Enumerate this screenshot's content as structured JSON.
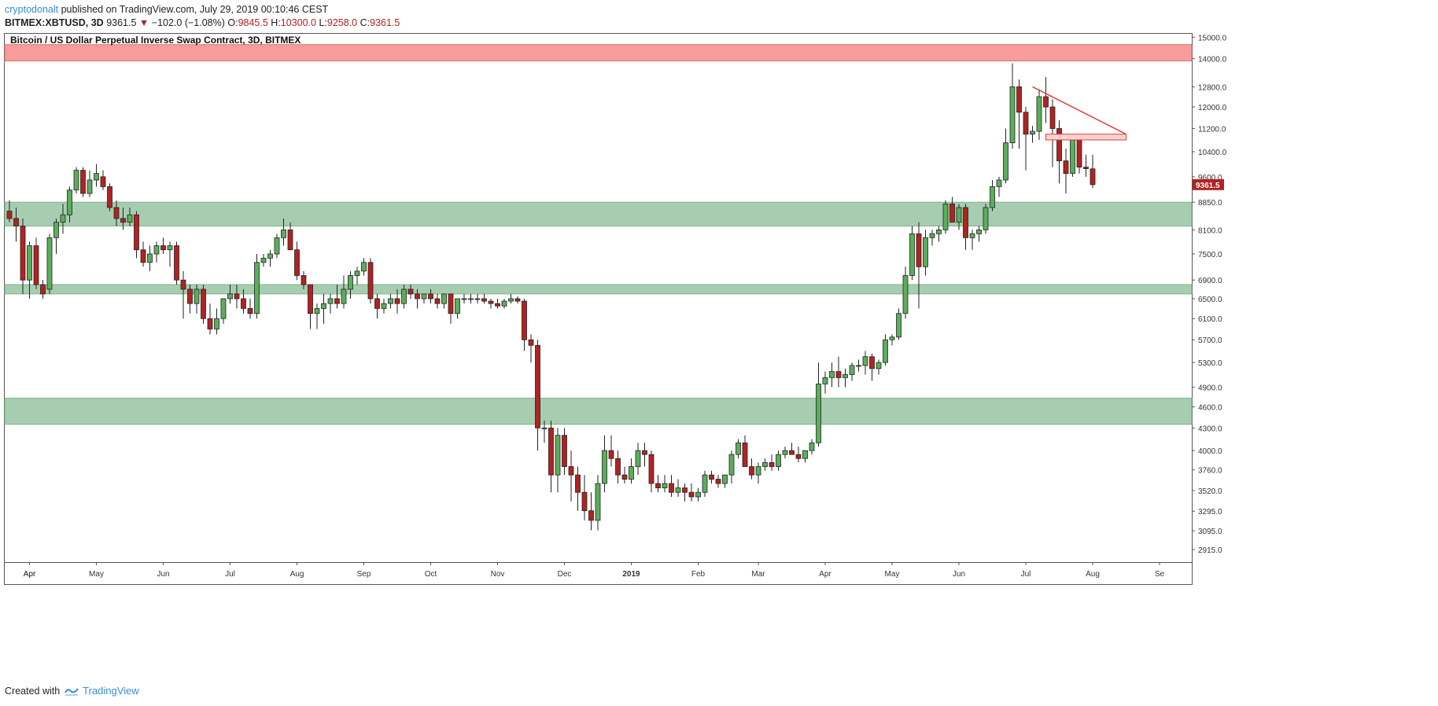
{
  "header": {
    "author": "cryptodonalt",
    "published_text": "published on TradingView.com, July 29, 2019 00:10:46 CEST",
    "symbol": "BITMEX:XBTUSD, 3D",
    "last": "9361.5",
    "change": "−102.0 (−1.08%)",
    "o_label": "O:",
    "o_value": "9845.5",
    "h_label": "H:",
    "h_value": "10300.0",
    "l_label": "L:",
    "l_value": "9258.0",
    "c_label": "C:",
    "c_value": "9361.5"
  },
  "footer": {
    "created_with": "Created with",
    "brand": "TradingView"
  },
  "colors": {
    "up": "#3d9a3d",
    "up_fill": "#5aaf5a",
    "down": "#b22222",
    "zone_green": "#a7cdb0",
    "zone_red": "#f79b9b",
    "price_label": "#b22222"
  },
  "chart_data": {
    "type": "candlestick",
    "title": "Bitcoin / US Dollar Perpetual Inverse Swap Contract, 3D, BITMEX",
    "y_scale": "log",
    "ylim": [
      2800,
      15200
    ],
    "y_ticks": [
      "15000.0",
      "14000.0",
      "12800.0",
      "12000.0",
      "11200.0",
      "10400.0",
      "9600.0",
      "8850.0",
      "8100.0",
      "7500.0",
      "6900.0",
      "6500.0",
      "6100.0",
      "5700.0",
      "5300.0",
      "4900.0",
      "4600.0",
      "4300.0",
      "4000.0",
      "3760.0",
      "3520.0",
      "3295.0",
      "3095.0",
      "2915.0"
    ],
    "x_ticks": [
      {
        "label": "Apr",
        "index": 3
      },
      {
        "label": "Apr",
        "index": 3
      },
      {
        "label": "May",
        "index": 13
      },
      {
        "label": "Jun",
        "index": 23
      },
      {
        "label": "Jul",
        "index": 33
      },
      {
        "label": "Aug",
        "index": 43
      },
      {
        "label": "Sep",
        "index": 53
      },
      {
        "label": "Oct",
        "index": 63
      },
      {
        "label": "Nov",
        "index": 73
      },
      {
        "label": "Dec",
        "index": 83
      },
      {
        "label": "2019",
        "index": 93,
        "bold": true
      },
      {
        "label": "Feb",
        "index": 103
      },
      {
        "label": "Mar",
        "index": 112
      },
      {
        "label": "Apr",
        "index": 122
      },
      {
        "label": "May",
        "index": 132
      },
      {
        "label": "Jun",
        "index": 142
      },
      {
        "label": "Jul",
        "index": 152
      },
      {
        "label": "Aug",
        "index": 162
      },
      {
        "label": "Se",
        "index": 172
      }
    ],
    "last_price": "9361.5",
    "zones": [
      {
        "kind": "resistance",
        "from": 13900,
        "to": 14650
      },
      {
        "kind": "support",
        "from": 8200,
        "to": 8850
      },
      {
        "kind": "support",
        "from": 6600,
        "to": 6800
      },
      {
        "kind": "support",
        "from": 4350,
        "to": 4730
      }
    ],
    "triangle": {
      "start": {
        "index": 153,
        "price": 12800
      },
      "end": {
        "index": 167,
        "price": 11000
      }
    },
    "triangle_base_zone": {
      "from_index": 155,
      "to_index": 167,
      "from": 10800,
      "to": 11000
    },
    "candles": [
      [
        8600,
        8900,
        8300,
        8400
      ],
      [
        8400,
        8700,
        7800,
        8200
      ],
      [
        8200,
        8400,
        6600,
        6900
      ],
      [
        6900,
        7800,
        6500,
        7700
      ],
      [
        7700,
        7900,
        6700,
        6800
      ],
      [
        6800,
        6900,
        6500,
        6600
      ],
      [
        6700,
        8000,
        6600,
        7900
      ],
      [
        7900,
        8400,
        7500,
        8300
      ],
      [
        8300,
        8800,
        8000,
        8500
      ],
      [
        8500,
        9300,
        8300,
        9200
      ],
      [
        9200,
        9900,
        9100,
        9800
      ],
      [
        9800,
        9900,
        9000,
        9100
      ],
      [
        9100,
        9800,
        9000,
        9500
      ],
      [
        9500,
        10000,
        9300,
        9700
      ],
      [
        9600,
        9800,
        9200,
        9300
      ],
      [
        9300,
        9400,
        8600,
        8700
      ],
      [
        8700,
        8900,
        8200,
        8400
      ],
      [
        8400,
        8700,
        8100,
        8300
      ],
      [
        8300,
        8700,
        8200,
        8500
      ],
      [
        8500,
        8600,
        7400,
        7600
      ],
      [
        7600,
        7800,
        7200,
        7300
      ],
      [
        7300,
        7700,
        7100,
        7500
      ],
      [
        7500,
        7800,
        7300,
        7700
      ],
      [
        7700,
        7900,
        7500,
        7600
      ],
      [
        7600,
        7800,
        7200,
        7700
      ],
      [
        7700,
        7800,
        6800,
        6900
      ],
      [
        6900,
        7100,
        6100,
        6700
      ],
      [
        6700,
        6800,
        6200,
        6400
      ],
      [
        6400,
        6800,
        6200,
        6700
      ],
      [
        6700,
        6800,
        6000,
        6100
      ],
      [
        6100,
        6400,
        5800,
        5900
      ],
      [
        5900,
        6300,
        5800,
        6100
      ],
      [
        6100,
        6500,
        6000,
        6500
      ],
      [
        6500,
        6800,
        6400,
        6600
      ],
      [
        6600,
        6800,
        6300,
        6500
      ],
      [
        6500,
        6700,
        6200,
        6300
      ],
      [
        6300,
        6500,
        6100,
        6200
      ],
      [
        6200,
        7500,
        6100,
        7300
      ],
      [
        7300,
        7500,
        7200,
        7400
      ],
      [
        7400,
        7600,
        7200,
        7500
      ],
      [
        7500,
        8000,
        7400,
        7900
      ],
      [
        7900,
        8400,
        7700,
        8100
      ],
      [
        8100,
        8300,
        7700,
        7600
      ],
      [
        7600,
        7800,
        6900,
        7000
      ],
      [
        7000,
        7100,
        6700,
        6800
      ],
      [
        6800,
        6800,
        5900,
        6200
      ],
      [
        6200,
        6400,
        5900,
        6300
      ],
      [
        6300,
        6600,
        6000,
        6400
      ],
      [
        6400,
        6600,
        6200,
        6500
      ],
      [
        6500,
        6800,
        6300,
        6400
      ],
      [
        6400,
        7000,
        6300,
        6700
      ],
      [
        6700,
        7100,
        6500,
        7000
      ],
      [
        7000,
        7200,
        6800,
        7100
      ],
      [
        7100,
        7400,
        7000,
        7300
      ],
      [
        7300,
        7400,
        6400,
        6500
      ],
      [
        6500,
        6600,
        6100,
        6300
      ],
      [
        6300,
        6500,
        6200,
        6400
      ],
      [
        6400,
        6600,
        6300,
        6500
      ],
      [
        6500,
        6700,
        6200,
        6400
      ],
      [
        6400,
        6800,
        6300,
        6700
      ],
      [
        6700,
        6800,
        6500,
        6600
      ],
      [
        6600,
        6700,
        6300,
        6500
      ],
      [
        6500,
        6600,
        6400,
        6600
      ],
      [
        6600,
        6700,
        6400,
        6500
      ],
      [
        6500,
        6600,
        6300,
        6400
      ],
      [
        6400,
        6600,
        6300,
        6600
      ],
      [
        6600,
        6600,
        6000,
        6200
      ],
      [
        6200,
        6500,
        6100,
        6500
      ],
      [
        6500,
        6600,
        6400,
        6500
      ],
      [
        6500,
        6600,
        6400,
        6500
      ],
      [
        6500,
        6600,
        6400,
        6500
      ],
      [
        6500,
        6600,
        6400,
        6450
      ],
      [
        6450,
        6500,
        6300,
        6400
      ],
      [
        6400,
        6500,
        6300,
        6350
      ],
      [
        6350,
        6500,
        6300,
        6450
      ],
      [
        6450,
        6600,
        6400,
        6500
      ],
      [
        6500,
        6550,
        6400,
        6450
      ],
      [
        6450,
        6500,
        5500,
        5700
      ],
      [
        5700,
        5800,
        5300,
        5600
      ],
      [
        5600,
        5700,
        4000,
        4300
      ],
      [
        4300,
        4400,
        4100,
        4300
      ],
      [
        4300,
        4400,
        3500,
        3700
      ],
      [
        3700,
        4300,
        3500,
        4200
      ],
      [
        4200,
        4300,
        3700,
        3800
      ],
      [
        3800,
        4000,
        3400,
        3700
      ],
      [
        3700,
        3800,
        3300,
        3500
      ],
      [
        3500,
        3700,
        3200,
        3300
      ],
      [
        3300,
        3500,
        3100,
        3200
      ],
      [
        3200,
        3700,
        3100,
        3600
      ],
      [
        3600,
        4200,
        3500,
        4000
      ],
      [
        4000,
        4200,
        3800,
        3900
      ],
      [
        3900,
        4000,
        3600,
        3700
      ],
      [
        3700,
        3800,
        3600,
        3650
      ],
      [
        3650,
        3900,
        3600,
        3800
      ],
      [
        3800,
        4100,
        3700,
        4000
      ],
      [
        4000,
        4100,
        3800,
        3950
      ],
      [
        3950,
        4000,
        3500,
        3600
      ],
      [
        3600,
        3700,
        3500,
        3550
      ],
      [
        3550,
        3700,
        3500,
        3600
      ],
      [
        3600,
        3700,
        3450,
        3500
      ],
      [
        3500,
        3650,
        3450,
        3550
      ],
      [
        3550,
        3600,
        3400,
        3500
      ],
      [
        3500,
        3600,
        3400,
        3450
      ],
      [
        3450,
        3550,
        3400,
        3500
      ],
      [
        3500,
        3750,
        3450,
        3700
      ],
      [
        3700,
        3750,
        3600,
        3650
      ],
      [
        3650,
        3700,
        3550,
        3600
      ],
      [
        3600,
        3700,
        3550,
        3700
      ],
      [
        3700,
        4000,
        3600,
        3950
      ],
      [
        3950,
        4150,
        3900,
        4100
      ],
      [
        4100,
        4200,
        3800,
        3800
      ],
      [
        3800,
        3900,
        3650,
        3700
      ],
      [
        3700,
        3850,
        3600,
        3800
      ],
      [
        3800,
        3900,
        3750,
        3850
      ],
      [
        3850,
        3950,
        3750,
        3800
      ],
      [
        3800,
        4000,
        3750,
        3950
      ],
      [
        3950,
        4050,
        3900,
        4000
      ],
      [
        4000,
        4100,
        3950,
        3950
      ],
      [
        3950,
        4050,
        3850,
        3900
      ],
      [
        3900,
        4000,
        3850,
        4000
      ],
      [
        4000,
        4150,
        3950,
        4100
      ],
      [
        4100,
        5300,
        4050,
        4950
      ],
      [
        4950,
        5150,
        4800,
        5050
      ],
      [
        5050,
        5300,
        4900,
        5150
      ],
      [
        5150,
        5400,
        4900,
        5050
      ],
      [
        5050,
        5200,
        4900,
        5100
      ],
      [
        5100,
        5300,
        5000,
        5250
      ],
      [
        5250,
        5350,
        5150,
        5250
      ],
      [
        5250,
        5500,
        5100,
        5400
      ],
      [
        5400,
        5450,
        5000,
        5200
      ],
      [
        5200,
        5350,
        5100,
        5300
      ],
      [
        5300,
        5800,
        5250,
        5700
      ],
      [
        5700,
        5800,
        5600,
        5750
      ],
      [
        5750,
        6300,
        5700,
        6200
      ],
      [
        6200,
        7200,
        6100,
        7000
      ],
      [
        7000,
        8200,
        6900,
        8000
      ],
      [
        8000,
        8300,
        6300,
        7200
      ],
      [
        7200,
        8100,
        7000,
        7900
      ],
      [
        7900,
        8100,
        7700,
        8000
      ],
      [
        8000,
        8200,
        7800,
        8100
      ],
      [
        8100,
        8900,
        8000,
        8800
      ],
      [
        8800,
        9000,
        8400,
        8300
      ],
      [
        8300,
        8800,
        8100,
        8700
      ],
      [
        8700,
        8800,
        7600,
        7900
      ],
      [
        7900,
        8100,
        7600,
        8000
      ],
      [
        8000,
        8200,
        7800,
        8100
      ],
      [
        8100,
        8800,
        8000,
        8700
      ],
      [
        8700,
        9500,
        8600,
        9300
      ],
      [
        9300,
        9600,
        9000,
        9500
      ],
      [
        9500,
        11200,
        9400,
        10700
      ],
      [
        10700,
        13800,
        10500,
        12800
      ],
      [
        12800,
        13100,
        10500,
        11800
      ],
      [
        11800,
        12000,
        9800,
        11000
      ],
      [
        11000,
        11300,
        10700,
        11100
      ],
      [
        11100,
        12700,
        10800,
        12400
      ],
      [
        12400,
        13200,
        11400,
        12000
      ],
      [
        12000,
        12300,
        9900,
        11200
      ],
      [
        11200,
        11500,
        9400,
        10100
      ],
      [
        10100,
        10500,
        9100,
        9700
      ],
      [
        9700,
        10900,
        9600,
        10800
      ],
      [
        10800,
        11000,
        9700,
        9900
      ],
      [
        9900,
        10300,
        9600,
        9850
      ],
      [
        9845.5,
        10300,
        9258,
        9361.5
      ]
    ]
  }
}
